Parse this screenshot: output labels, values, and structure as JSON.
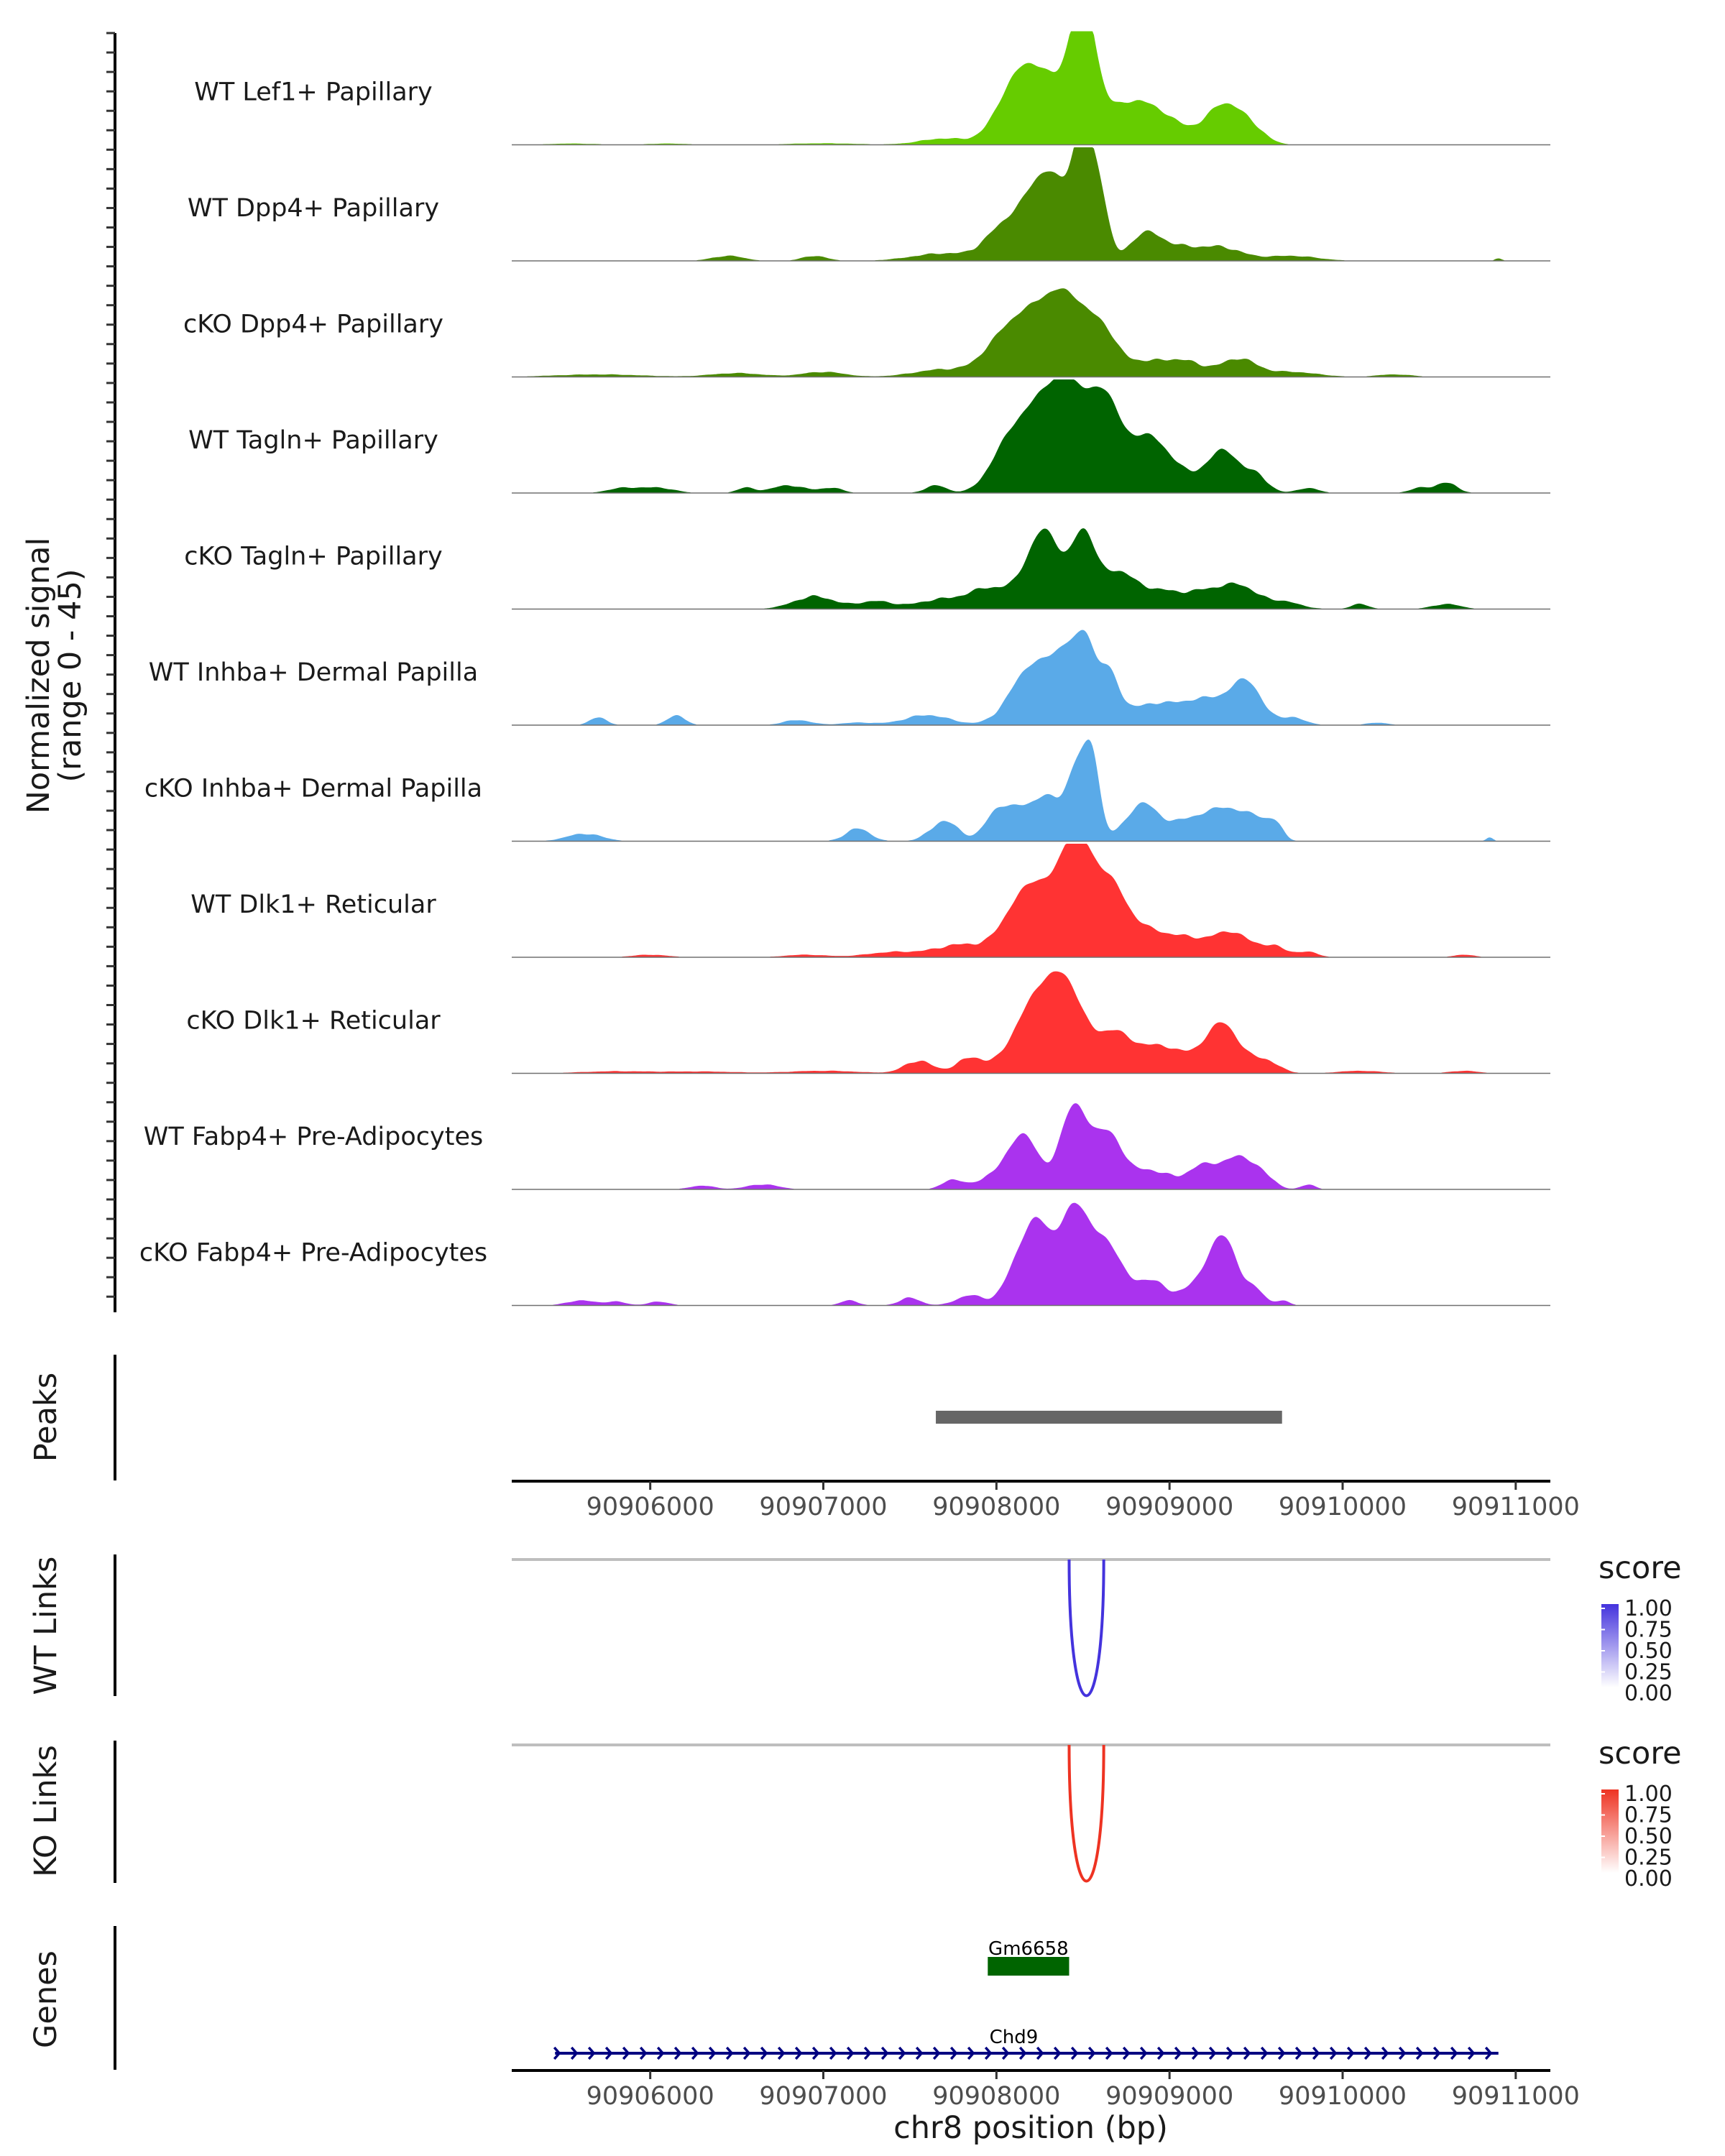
{
  "chart_data": {
    "type": "area",
    "title": "",
    "xlabel": "chr8 position (bp)",
    "region": {
      "chrom": "chr8",
      "start": 90905200,
      "end": 90911200
    },
    "x_ticks": [
      90906000,
      90907000,
      90908000,
      90909000,
      90910000,
      90911000
    ],
    "coverage_ylabel": "Normalized signal",
    "coverage_range_label": "(range 0 - 45)",
    "ylim": [
      0,
      45
    ],
    "tracks": [
      {
        "name": "WT Lef1+ Papillary",
        "color": "#66cc00",
        "bumps": [
          [
            90905550,
            140,
            0.5
          ],
          [
            90906100,
            120,
            0.5
          ],
          [
            90907000,
            200,
            0.6
          ],
          [
            90907700,
            140,
            2.5
          ],
          [
            90908100,
            110,
            18
          ],
          [
            90908250,
            120,
            15
          ],
          [
            90908500,
            70,
            44
          ],
          [
            90908420,
            180,
            14
          ],
          [
            90908800,
            150,
            13
          ],
          [
            90909000,
            170,
            6
          ],
          [
            90909300,
            90,
            13
          ],
          [
            90909450,
            90,
            8
          ]
        ]
      },
      {
        "name": "WT Dpp4+ Papillary",
        "color": "#4a8a00",
        "bumps": [
          [
            90906450,
            90,
            2
          ],
          [
            90906950,
            70,
            2
          ],
          [
            90907700,
            180,
            3
          ],
          [
            90908000,
            90,
            8
          ],
          [
            90908220,
            120,
            25
          ],
          [
            90908350,
            90,
            18
          ],
          [
            90908500,
            60,
            45
          ],
          [
            90908600,
            50,
            22
          ],
          [
            90908850,
            80,
            8
          ],
          [
            90909000,
            140,
            6
          ],
          [
            90909300,
            120,
            5
          ],
          [
            90909700,
            150,
            2
          ],
          [
            90910900,
            20,
            1
          ]
        ]
      },
      {
        "name": "cKO Dpp4+ Papillary",
        "color": "#4a8a00",
        "bumps": [
          [
            90905700,
            250,
            1
          ],
          [
            90906500,
            150,
            1.5
          ],
          [
            90907000,
            120,
            2
          ],
          [
            90907700,
            170,
            3
          ],
          [
            90908000,
            100,
            6
          ],
          [
            90908200,
            150,
            24
          ],
          [
            90908430,
            120,
            25
          ],
          [
            90908620,
            80,
            12
          ],
          [
            90908850,
            150,
            6
          ],
          [
            90909100,
            110,
            5
          ],
          [
            90909400,
            100,
            7
          ],
          [
            90909700,
            150,
            2
          ],
          [
            90910300,
            100,
            1
          ]
        ]
      },
      {
        "name": "WT Tagln+ Papillary",
        "color": "#006400",
        "bumps": [
          [
            90905850,
            90,
            2
          ],
          [
            90906050,
            90,
            2
          ],
          [
            90906550,
            50,
            2
          ],
          [
            90906800,
            100,
            3
          ],
          [
            90907050,
            60,
            2
          ],
          [
            90907650,
            60,
            3
          ],
          [
            90908050,
            100,
            13
          ],
          [
            90908250,
            130,
            30
          ],
          [
            90908450,
            120,
            33
          ],
          [
            90908650,
            90,
            30
          ],
          [
            90908880,
            90,
            22
          ],
          [
            90909050,
            70,
            8
          ],
          [
            90909300,
            100,
            17
          ],
          [
            90909500,
            70,
            6
          ],
          [
            90909800,
            60,
            2
          ],
          [
            90910450,
            60,
            2
          ],
          [
            90910600,
            60,
            4
          ]
        ]
      },
      {
        "name": "cKO Tagln+ Papillary",
        "color": "#006400",
        "bumps": [
          [
            90906950,
            120,
            5
          ],
          [
            90907300,
            100,
            3
          ],
          [
            90907700,
            150,
            4
          ],
          [
            90907950,
            100,
            7
          ],
          [
            90908200,
            100,
            14
          ],
          [
            90908300,
            80,
            22
          ],
          [
            90908500,
            70,
            29
          ],
          [
            90908700,
            100,
            14
          ],
          [
            90908950,
            120,
            7
          ],
          [
            90909200,
            100,
            6
          ],
          [
            90909400,
            100,
            9
          ],
          [
            90909650,
            100,
            3
          ],
          [
            90910100,
            50,
            2
          ],
          [
            90910600,
            80,
            2
          ]
        ]
      },
      {
        "name": "WT Inhba+ Dermal Papilla",
        "color": "#5aaae8",
        "bumps": [
          [
            90905700,
            50,
            3
          ],
          [
            90906150,
            50,
            4
          ],
          [
            90906850,
            80,
            2
          ],
          [
            90907200,
            100,
            1
          ],
          [
            90907600,
            130,
            4
          ],
          [
            90908200,
            120,
            22
          ],
          [
            90908450,
            110,
            30
          ],
          [
            90908520,
            40,
            10
          ],
          [
            90908650,
            60,
            15
          ],
          [
            90908900,
            160,
            8
          ],
          [
            90909250,
            150,
            10
          ],
          [
            90909450,
            80,
            14
          ],
          [
            90909700,
            80,
            3
          ],
          [
            90910200,
            60,
            1
          ]
        ]
      },
      {
        "name": "cKO Inhba+ Dermal Papilla",
        "color": "#5aaae8",
        "bumps": [
          [
            90905620,
            100,
            3
          ],
          [
            90907200,
            70,
            5
          ],
          [
            90907700,
            80,
            8
          ],
          [
            90908000,
            70,
            10
          ],
          [
            90908150,
            90,
            12
          ],
          [
            90908300,
            70,
            14
          ],
          [
            90908480,
            70,
            32
          ],
          [
            90908560,
            40,
            20
          ],
          [
            90908850,
            100,
            15
          ],
          [
            90909100,
            80,
            7
          ],
          [
            90909300,
            100,
            13
          ],
          [
            90909500,
            80,
            9
          ],
          [
            90909620,
            40,
            5
          ],
          [
            90910850,
            20,
            1.5
          ]
        ]
      },
      {
        "name": "WT Dlk1+ Reticular",
        "color": "#ff3333",
        "bumps": [
          [
            90906000,
            100,
            1
          ],
          [
            90906900,
            120,
            1
          ],
          [
            90907400,
            150,
            2
          ],
          [
            90907800,
            150,
            5
          ],
          [
            90908100,
            100,
            12
          ],
          [
            90908250,
            110,
            24
          ],
          [
            90908460,
            90,
            44
          ],
          [
            90908650,
            90,
            25
          ],
          [
            90908850,
            130,
            11
          ],
          [
            90909100,
            100,
            6
          ],
          [
            90909350,
            110,
            10
          ],
          [
            90909600,
            80,
            4
          ],
          [
            90909800,
            60,
            2
          ],
          [
            90910700,
            60,
            1
          ]
        ]
      },
      {
        "name": "cKO Dlk1+ Reticular",
        "color": "#ff3333",
        "bumps": [
          [
            90905800,
            200,
            0.8
          ],
          [
            90906300,
            200,
            0.7
          ],
          [
            90907000,
            200,
            1
          ],
          [
            90907550,
            80,
            5
          ],
          [
            90907850,
            80,
            6
          ],
          [
            90908200,
            120,
            22
          ],
          [
            90908400,
            120,
            33
          ],
          [
            90908680,
            80,
            13
          ],
          [
            90908870,
            110,
            10
          ],
          [
            90909050,
            90,
            6
          ],
          [
            90909300,
            100,
            20
          ],
          [
            90909550,
            80,
            5
          ],
          [
            90910100,
            120,
            1
          ],
          [
            90910700,
            80,
            1
          ]
        ]
      },
      {
        "name": "WT Fabp4+ Pre-Adipocytes",
        "color": "#aa33ee",
        "bumps": [
          [
            90906300,
            70,
            1.5
          ],
          [
            90906650,
            90,
            2
          ],
          [
            90907750,
            60,
            4
          ],
          [
            90907950,
            70,
            4
          ],
          [
            90908150,
            90,
            22
          ],
          [
            90908450,
            80,
            33
          ],
          [
            90908650,
            80,
            22
          ],
          [
            90908850,
            70,
            7
          ],
          [
            90909000,
            70,
            5
          ],
          [
            90909200,
            80,
            10
          ],
          [
            90909400,
            80,
            13
          ],
          [
            90909550,
            60,
            5
          ],
          [
            90909800,
            40,
            2
          ]
        ]
      },
      {
        "name": "cKO Fabp4+ Pre-Adipocytes",
        "color": "#aa33ee",
        "bumps": [
          [
            90905600,
            80,
            2
          ],
          [
            90905800,
            60,
            1.5
          ],
          [
            90906050,
            60,
            1.5
          ],
          [
            90907150,
            50,
            2
          ],
          [
            90907500,
            60,
            3
          ],
          [
            90907850,
            80,
            4
          ],
          [
            90908100,
            70,
            10
          ],
          [
            90908230,
            80,
            31
          ],
          [
            90908450,
            90,
            38
          ],
          [
            90908650,
            90,
            22
          ],
          [
            90908900,
            80,
            10
          ],
          [
            90909100,
            60,
            5
          ],
          [
            90909300,
            90,
            28
          ],
          [
            90909500,
            50,
            5
          ],
          [
            90909650,
            40,
            2
          ]
        ]
      }
    ],
    "peaks": {
      "label": "Peaks",
      "ranges": [
        [
          90907650,
          90909650
        ]
      ]
    },
    "links": [
      {
        "label": "WT Links",
        "legend_title": "score",
        "legend_ticks": [
          "1.00",
          "0.75",
          "0.50",
          "0.25",
          "0.00"
        ],
        "color": "#4433dd",
        "arcs": [
          [
            90908420,
            90908620,
            1.0
          ]
        ]
      },
      {
        "label": "KO Links",
        "legend_title": "score",
        "legend_ticks": [
          "1.00",
          "0.75",
          "0.50",
          "0.25",
          "0.00"
        ],
        "color": "#ee3322",
        "arcs": [
          [
            90908420,
            90908620,
            1.0
          ]
        ]
      }
    ],
    "genes": {
      "label": "Genes",
      "items": [
        {
          "name": "Gm6658",
          "start": 90907950,
          "end": 90908420,
          "strand": "+",
          "color": "#006400",
          "row": 0
        },
        {
          "name": "Chd9",
          "start": 90905450,
          "end": 90910900,
          "strand": "+",
          "color": "#000080",
          "row": 1
        }
      ]
    }
  }
}
